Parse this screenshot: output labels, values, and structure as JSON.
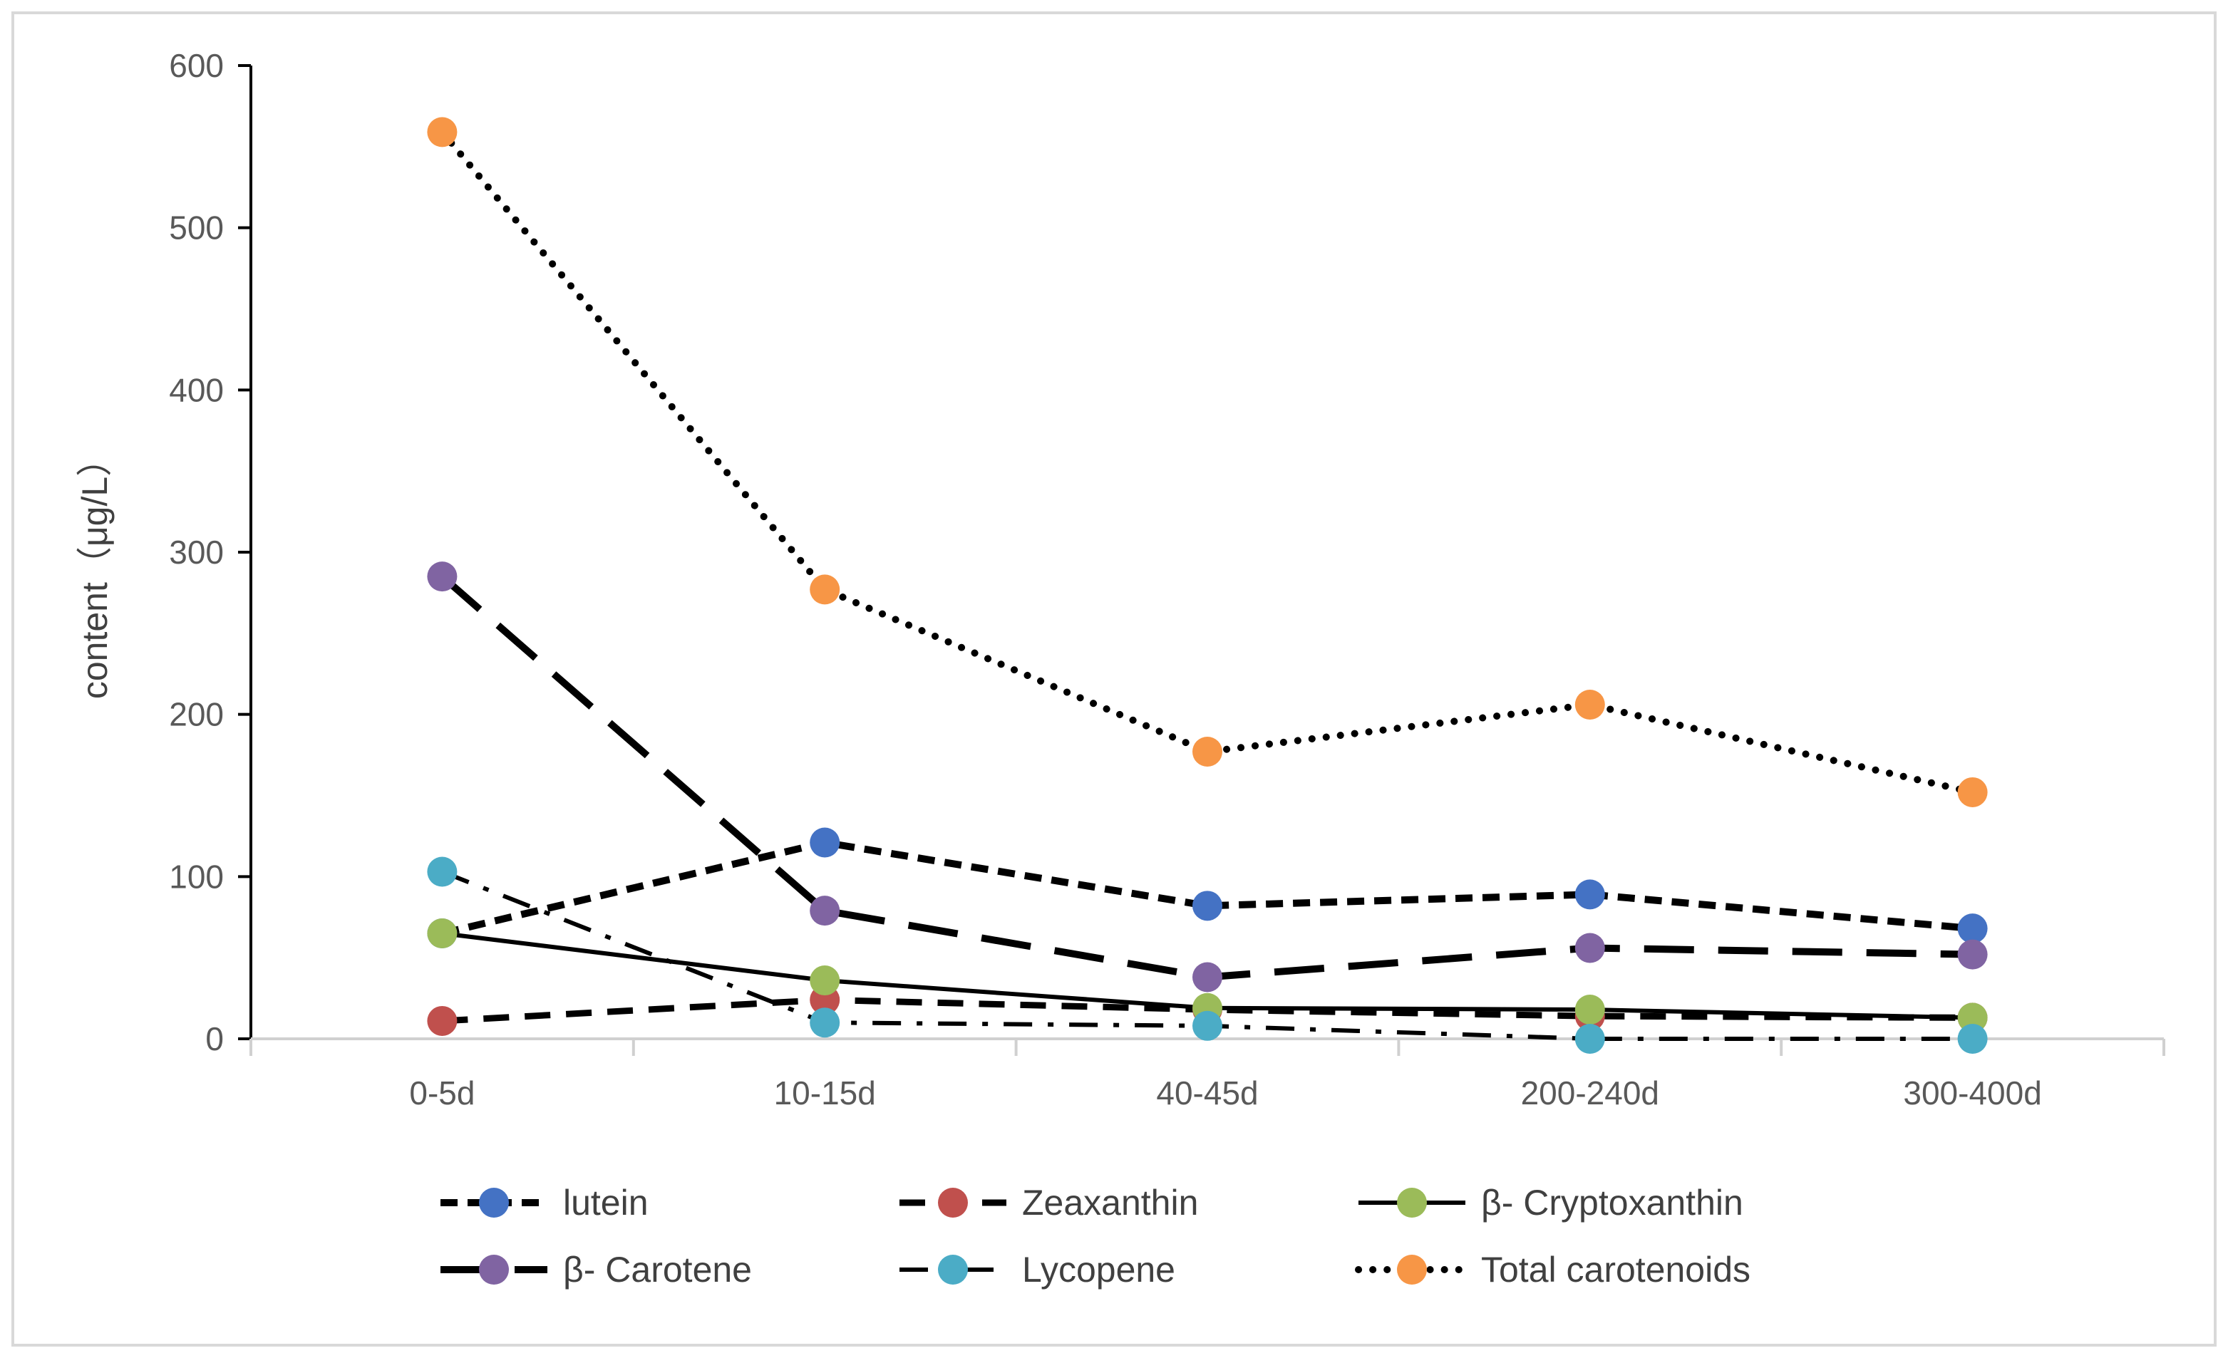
{
  "chart_data": {
    "type": "line",
    "title": "",
    "xlabel": "",
    "ylabel": "content（μg/L）",
    "ylim": [
      0,
      600
    ],
    "yticks": [
      "0",
      "100",
      "200",
      "300",
      "400",
      "500",
      "600"
    ],
    "categories": [
      "0-5d",
      "10-15d",
      "40-45d",
      "200-240d",
      "300-400d"
    ],
    "grid": false,
    "legend_position": "bottom",
    "series": [
      {
        "name": "lutein",
        "values": [
          65,
          121,
          82,
          89,
          68
        ],
        "marker_color": "#4472C4",
        "line_style": "short-dash"
      },
      {
        "name": "Zeaxanthin",
        "values": [
          11,
          24,
          18,
          14,
          13
        ],
        "marker_color": "#C0504D",
        "line_style": "dash"
      },
      {
        "name": "β- Cryptoxanthin",
        "values": [
          65,
          36,
          19,
          18,
          13
        ],
        "marker_color": "#9BBB59",
        "line_style": "solid"
      },
      {
        "name": "β- Carotene",
        "values": [
          285,
          79,
          38,
          56,
          52
        ],
        "marker_color": "#8064A2",
        "line_style": "long-dash"
      },
      {
        "name": "Lycopene",
        "values": [
          103,
          10,
          8,
          0,
          0
        ],
        "marker_color": "#4BACC6",
        "line_style": "dash-dot"
      },
      {
        "name": "Total carotenoids",
        "values": [
          559,
          277,
          177,
          206,
          152
        ],
        "marker_color": "#F79646",
        "line_style": "dotted"
      }
    ]
  }
}
